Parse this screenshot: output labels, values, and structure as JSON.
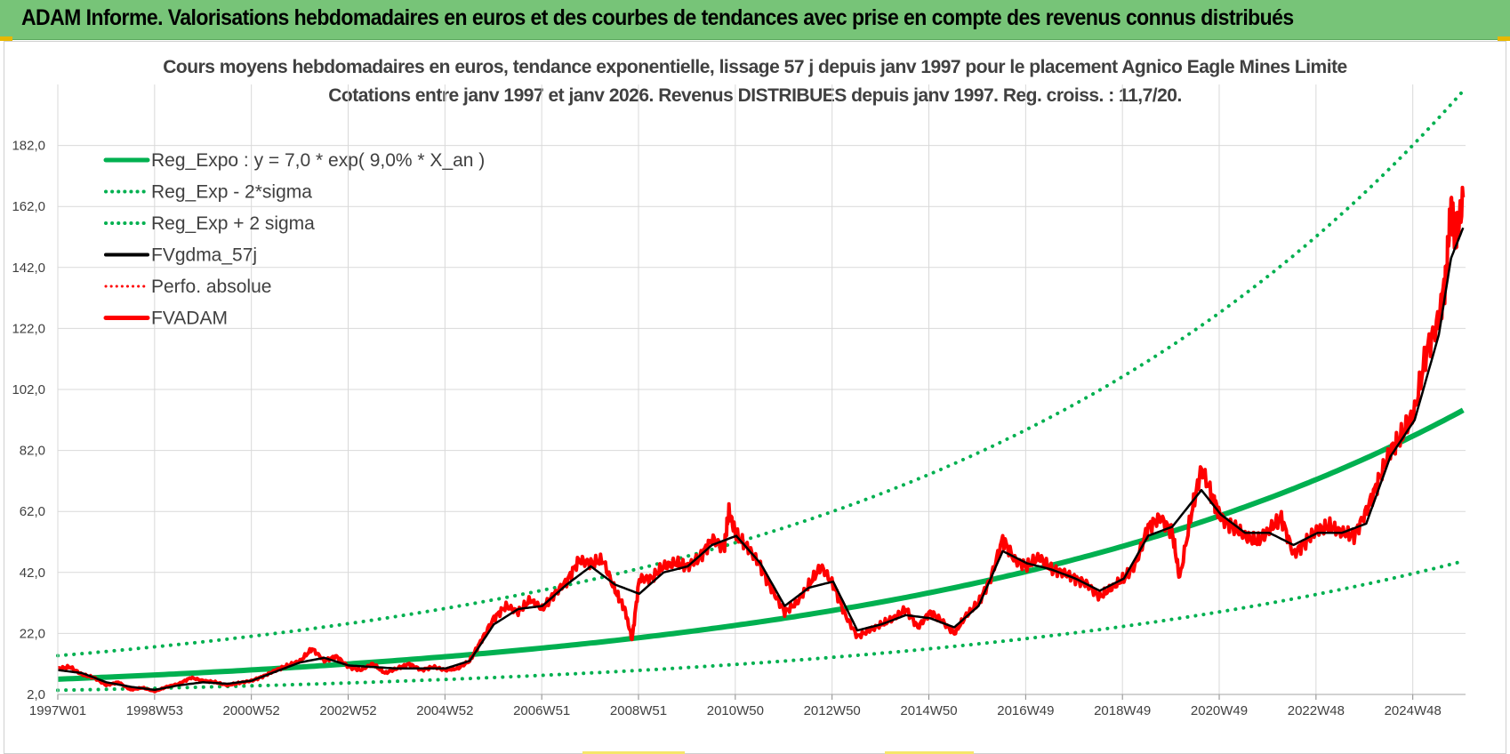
{
  "banner": {
    "title": "ADAM Informe. Valorisations hebdomadaires en euros et des courbes de tendances avec prise en compte des revenus connus distribués"
  },
  "colors": {
    "banner": "#77c478",
    "reg_expo": "#00b050",
    "fvgdma": "#000000",
    "fvadam": "#ff0000",
    "grid": "#d9d9d9"
  },
  "chart_data": {
    "type": "line",
    "title": "Cours moyens  hebdomadaires en euros, tendance exponentielle, lissage 57 j depuis janv 1997 pour le placement Agnico Eagle Mines Limite",
    "subtitle": "Cotations entre janv 1997 et janv 2026. Revenus DISTRIBUES depuis janv 1997.  Reg. croiss. : 11,7/20.",
    "x_tick_labels": [
      "1997W01",
      "1998W53",
      "2000W52",
      "2002W52",
      "2004W52",
      "2006W51",
      "2008W51",
      "2010W50",
      "2012W50",
      "2014W50",
      "2016W49",
      "2018W49",
      "2020W49",
      "2022W48",
      "2024W48"
    ],
    "y_tick_labels": [
      "2,0",
      "22,0",
      "42,0",
      "62,0",
      "82,0",
      "102,0",
      "122,0",
      "142,0",
      "162,0",
      "182,0"
    ],
    "x_range": [
      1997.0,
      2026.05
    ],
    "ylim": [
      2,
      202
    ],
    "grid": true,
    "legend_position": "top-left",
    "legend": [
      {
        "label": "Reg_Expo : y = 7,0 * exp( 9,0% *  X_an )",
        "style": "solid-green"
      },
      {
        "label": "Reg_Exp - 2*sigma",
        "style": "dotted-green"
      },
      {
        "label": "Reg_Exp + 2 sigma",
        "style": "dotted-green"
      },
      {
        "label": "FVgdma_57j",
        "style": "solid-black"
      },
      {
        "label": "Perfo. absolue",
        "style": "dotted-red"
      },
      {
        "label": "FVADAM",
        "style": "solid-red"
      }
    ],
    "trend": {
      "a": 7.0,
      "b": 0.09,
      "lower_factor": 0.48,
      "upper_factor": 2.1
    },
    "series": [
      {
        "name": "FVADAM",
        "points": [
          [
            1997.0,
            10.5
          ],
          [
            1997.25,
            11.0
          ],
          [
            1997.5,
            8.5
          ],
          [
            1997.75,
            7.5
          ],
          [
            1998.0,
            5.0
          ],
          [
            1998.25,
            6.0
          ],
          [
            1998.5,
            3.5
          ],
          [
            1998.75,
            4.2
          ],
          [
            1999.0,
            3.0
          ],
          [
            1999.25,
            4.5
          ],
          [
            1999.5,
            5.5
          ],
          [
            1999.75,
            7.5
          ],
          [
            2000.0,
            6.5
          ],
          [
            2000.25,
            6.0
          ],
          [
            2000.5,
            5.0
          ],
          [
            2000.75,
            5.8
          ],
          [
            2001.0,
            6.5
          ],
          [
            2001.25,
            8.0
          ],
          [
            2001.5,
            10.0
          ],
          [
            2001.75,
            11.5
          ],
          [
            2002.0,
            13.0
          ],
          [
            2002.25,
            17.0
          ],
          [
            2002.5,
            13.0
          ],
          [
            2002.75,
            14.5
          ],
          [
            2003.0,
            11.0
          ],
          [
            2003.25,
            10.0
          ],
          [
            2003.5,
            12.0
          ],
          [
            2003.75,
            9.0
          ],
          [
            2004.0,
            10.5
          ],
          [
            2004.25,
            12.0
          ],
          [
            2004.5,
            10.0
          ],
          [
            2004.75,
            11.0
          ],
          [
            2005.0,
            10.0
          ],
          [
            2005.25,
            10.5
          ],
          [
            2005.5,
            13.0
          ],
          [
            2005.75,
            20.0
          ],
          [
            2006.0,
            27.0
          ],
          [
            2006.25,
            31.0
          ],
          [
            2006.5,
            29.0
          ],
          [
            2006.75,
            33.0
          ],
          [
            2007.0,
            30.0
          ],
          [
            2007.25,
            35.0
          ],
          [
            2007.5,
            39.0
          ],
          [
            2007.75,
            46.0
          ],
          [
            2008.0,
            45.0
          ],
          [
            2008.25,
            46.0
          ],
          [
            2008.5,
            36.0
          ],
          [
            2008.7,
            30.0
          ],
          [
            2008.85,
            20.0
          ],
          [
            2009.0,
            40.0
          ],
          [
            2009.25,
            40.0
          ],
          [
            2009.5,
            44.0
          ],
          [
            2009.75,
            45.0
          ],
          [
            2010.0,
            44.0
          ],
          [
            2010.25,
            47.0
          ],
          [
            2010.5,
            53.0
          ],
          [
            2010.75,
            50.0
          ],
          [
            2010.85,
            62.0
          ],
          [
            2011.0,
            54.0
          ],
          [
            2011.25,
            50.0
          ],
          [
            2011.5,
            44.0
          ],
          [
            2011.75,
            36.0
          ],
          [
            2012.0,
            29.0
          ],
          [
            2012.25,
            32.0
          ],
          [
            2012.5,
            38.0
          ],
          [
            2012.75,
            44.0
          ],
          [
            2013.0,
            38.0
          ],
          [
            2013.25,
            28.0
          ],
          [
            2013.5,
            21.0
          ],
          [
            2013.75,
            23.0
          ],
          [
            2014.0,
            25.0
          ],
          [
            2014.25,
            27.0
          ],
          [
            2014.5,
            30.0
          ],
          [
            2014.75,
            24.0
          ],
          [
            2015.0,
            29.0
          ],
          [
            2015.25,
            26.0
          ],
          [
            2015.5,
            22.0
          ],
          [
            2015.75,
            28.0
          ],
          [
            2016.0,
            32.0
          ],
          [
            2016.25,
            40.0
          ],
          [
            2016.5,
            53.0
          ],
          [
            2016.75,
            46.0
          ],
          [
            2017.0,
            44.0
          ],
          [
            2017.25,
            47.0
          ],
          [
            2017.5,
            43.0
          ],
          [
            2017.75,
            42.0
          ],
          [
            2018.0,
            40.0
          ],
          [
            2018.25,
            38.0
          ],
          [
            2018.5,
            34.0
          ],
          [
            2018.75,
            37.0
          ],
          [
            2019.0,
            40.0
          ],
          [
            2019.25,
            45.0
          ],
          [
            2019.5,
            57.0
          ],
          [
            2019.75,
            60.0
          ],
          [
            2020.0,
            55.0
          ],
          [
            2020.15,
            40.0
          ],
          [
            2020.4,
            62.0
          ],
          [
            2020.6,
            76.0
          ],
          [
            2020.85,
            66.0
          ],
          [
            2021.0,
            60.0
          ],
          [
            2021.25,
            57.0
          ],
          [
            2021.5,
            54.0
          ],
          [
            2021.75,
            52.0
          ],
          [
            2022.0,
            56.0
          ],
          [
            2022.25,
            60.0
          ],
          [
            2022.5,
            48.0
          ],
          [
            2022.75,
            52.0
          ],
          [
            2023.0,
            56.0
          ],
          [
            2023.25,
            57.0
          ],
          [
            2023.5,
            55.0
          ],
          [
            2023.75,
            54.0
          ],
          [
            2024.0,
            62.0
          ],
          [
            2024.25,
            72.0
          ],
          [
            2024.5,
            82.0
          ],
          [
            2024.75,
            87.0
          ],
          [
            2025.0,
            95.0
          ],
          [
            2025.25,
            115.0
          ],
          [
            2025.5,
            125.0
          ],
          [
            2025.65,
            140.0
          ],
          [
            2025.75,
            163.0
          ],
          [
            2025.85,
            150.0
          ],
          [
            2026.0,
            165.0
          ]
        ]
      },
      {
        "name": "FVgdma_57j",
        "points": [
          [
            1997.0,
            10.0
          ],
          [
            1997.5,
            9.0
          ],
          [
            1998.0,
            6.0
          ],
          [
            1998.5,
            4.5
          ],
          [
            1999.0,
            3.5
          ],
          [
            1999.5,
            5.0
          ],
          [
            2000.0,
            6.0
          ],
          [
            2000.5,
            5.5
          ],
          [
            2001.0,
            6.5
          ],
          [
            2001.5,
            9.5
          ],
          [
            2002.0,
            12.5
          ],
          [
            2002.5,
            14.0
          ],
          [
            2003.0,
            11.5
          ],
          [
            2003.5,
            11.0
          ],
          [
            2004.0,
            10.5
          ],
          [
            2004.5,
            10.5
          ],
          [
            2005.0,
            10.5
          ],
          [
            2005.5,
            13.0
          ],
          [
            2006.0,
            25.0
          ],
          [
            2006.5,
            30.0
          ],
          [
            2007.0,
            31.0
          ],
          [
            2007.5,
            38.0
          ],
          [
            2008.0,
            44.0
          ],
          [
            2008.5,
            38.0
          ],
          [
            2009.0,
            35.0
          ],
          [
            2009.5,
            42.0
          ],
          [
            2010.0,
            44.0
          ],
          [
            2010.5,
            51.0
          ],
          [
            2011.0,
            54.0
          ],
          [
            2011.5,
            45.0
          ],
          [
            2012.0,
            31.0
          ],
          [
            2012.5,
            37.0
          ],
          [
            2013.0,
            39.0
          ],
          [
            2013.5,
            23.0
          ],
          [
            2014.0,
            25.0
          ],
          [
            2014.5,
            28.0
          ],
          [
            2015.0,
            27.0
          ],
          [
            2015.5,
            24.0
          ],
          [
            2016.0,
            31.0
          ],
          [
            2016.5,
            49.0
          ],
          [
            2017.0,
            45.0
          ],
          [
            2017.5,
            43.0
          ],
          [
            2018.0,
            40.0
          ],
          [
            2018.5,
            36.0
          ],
          [
            2019.0,
            40.0
          ],
          [
            2019.5,
            54.0
          ],
          [
            2020.0,
            57.0
          ],
          [
            2020.6,
            69.0
          ],
          [
            2021.0,
            61.0
          ],
          [
            2021.5,
            55.0
          ],
          [
            2022.0,
            55.0
          ],
          [
            2022.5,
            51.0
          ],
          [
            2023.0,
            55.0
          ],
          [
            2023.5,
            55.0
          ],
          [
            2024.0,
            58.0
          ],
          [
            2024.5,
            80.0
          ],
          [
            2025.0,
            92.0
          ],
          [
            2025.5,
            120.0
          ],
          [
            2025.75,
            145.0
          ],
          [
            2026.0,
            155.0
          ]
        ]
      }
    ]
  }
}
